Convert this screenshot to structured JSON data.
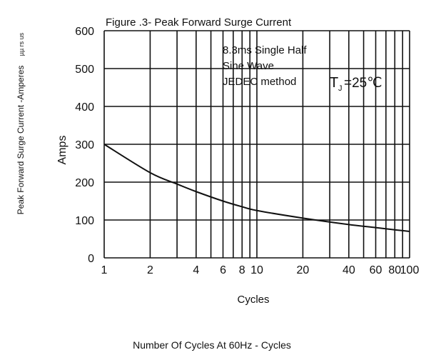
{
  "chart_data": {
    "type": "line",
    "title": "Figure .3- Peak Forward Surge Current",
    "outer_ylabel": "Peak Forward Surge Current -Amperes",
    "outer_ylabel_suffix": "µµ rs us",
    "ylabel": "Amps",
    "xlabel": "Cycles",
    "outer_xlabel": "Number Of Cycles At 60Hz - Cycles",
    "xscale": "log",
    "xlim": [
      1,
      100
    ],
    "ylim": [
      0,
      600
    ],
    "grid": true,
    "x_ticks": [
      1,
      2,
      4,
      6,
      8,
      10,
      20,
      40,
      60,
      80,
      100
    ],
    "x_tick_labels": [
      "1",
      "2",
      "4",
      "6",
      "8",
      "10",
      "20",
      "40",
      "60",
      "80",
      "100"
    ],
    "y_ticks": [
      0,
      100,
      200,
      300,
      400,
      500,
      600
    ],
    "y_tick_labels": [
      "0",
      "100",
      "200",
      "300",
      "400",
      "500",
      "600"
    ],
    "series": [
      {
        "x": [
          1,
          2,
          3,
          4,
          6,
          8,
          10,
          20,
          40,
          60,
          80,
          100
        ],
        "y": [
          300,
          225,
          195,
          175,
          150,
          135,
          125,
          105,
          88,
          80,
          74,
          70
        ]
      }
    ],
    "annotation": {
      "lines": [
        "8.3ms Single Half",
        "Sine Wave",
        "JEDEC method"
      ],
      "tj_symbol": "T",
      "tj_subscript": "J",
      "tj_value": "=25℃"
    },
    "colors": {
      "curve": "#111111",
      "grid": "#111111",
      "background": "#ffffff"
    }
  }
}
